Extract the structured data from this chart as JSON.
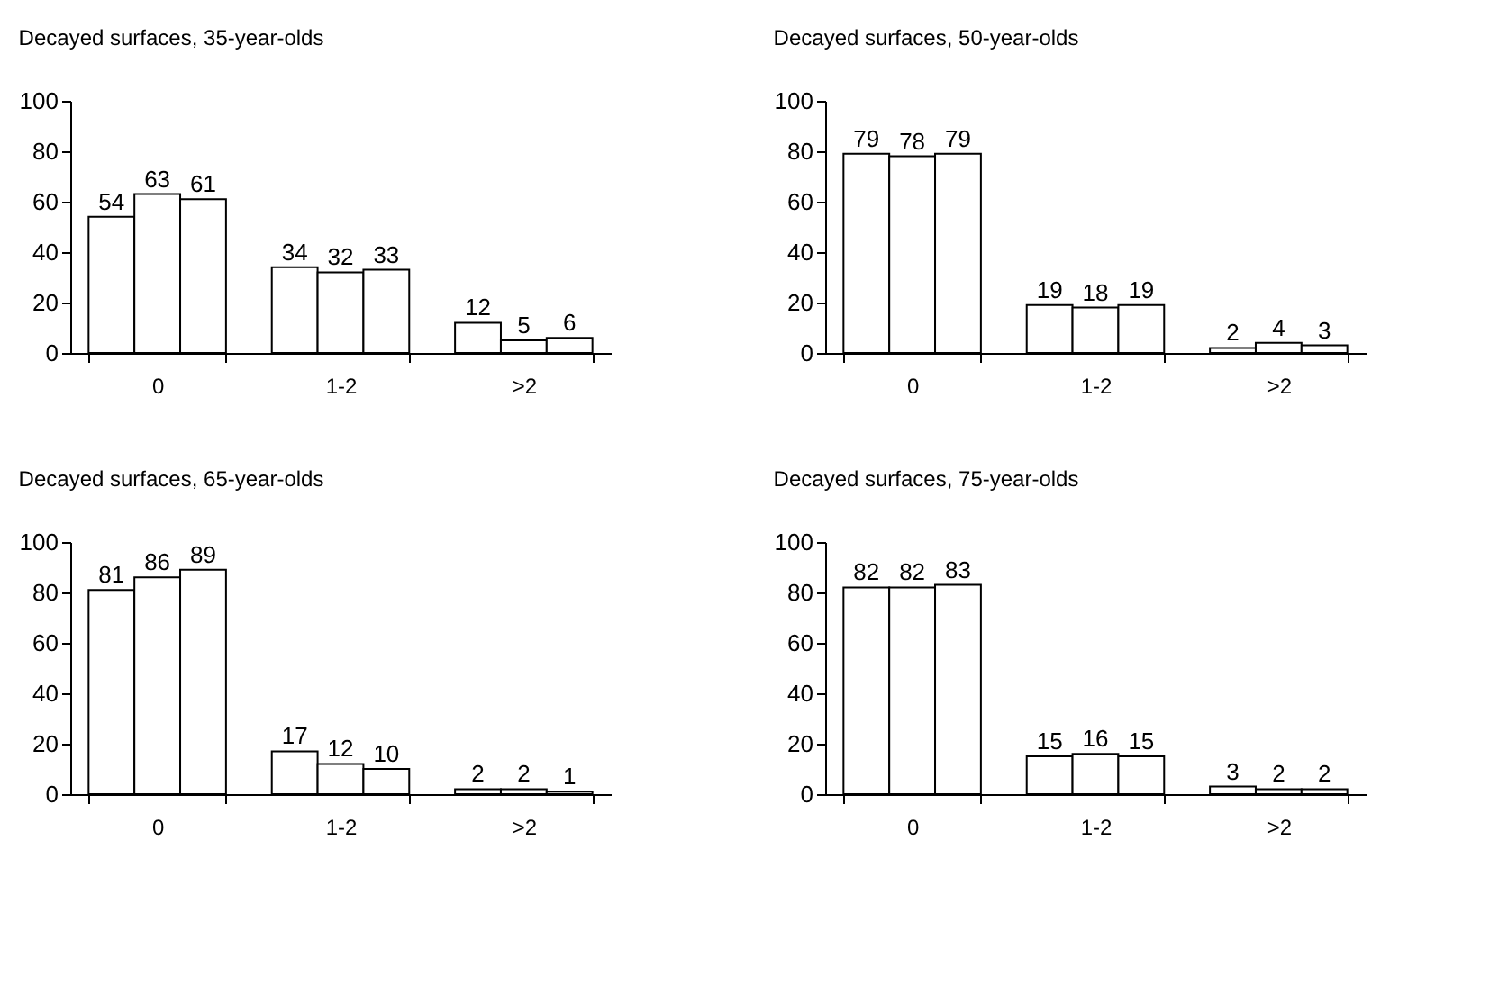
{
  "chart_data": [
    {
      "type": "bar",
      "title": "Decayed surfaces, 35-year-olds",
      "categories": [
        "0",
        "1-2",
        ">2"
      ],
      "series": [
        {
          "color": "#ffffff",
          "values": [
            54,
            34,
            12
          ]
        },
        {
          "color": "#ffffff",
          "values": [
            63,
            32,
            5
          ]
        },
        {
          "color": "#ffffff",
          "values": [
            61,
            33,
            6
          ]
        }
      ],
      "ylim": [
        0,
        100
      ],
      "yticks": [
        0,
        20,
        40,
        60,
        80,
        100
      ],
      "data_labels": true,
      "grid": false,
      "legend": false
    },
    {
      "type": "bar",
      "title": "Decayed surfaces, 50-year-olds",
      "categories": [
        "0",
        "1-2",
        ">2"
      ],
      "series": [
        {
          "color": "#ffffff",
          "values": [
            79,
            19,
            2
          ]
        },
        {
          "color": "#ffffff",
          "values": [
            78,
            18,
            4
          ]
        },
        {
          "color": "#ffffff",
          "values": [
            79,
            19,
            3
          ]
        }
      ],
      "ylim": [
        0,
        100
      ],
      "yticks": [
        0,
        20,
        40,
        60,
        80,
        100
      ],
      "data_labels": true,
      "grid": false,
      "legend": false
    },
    {
      "type": "bar",
      "title": "Decayed surfaces, 65-year-olds",
      "categories": [
        "0",
        "1-2",
        ">2"
      ],
      "series": [
        {
          "color": "#ffffff",
          "values": [
            81,
            17,
            2
          ]
        },
        {
          "color": "#ffffff",
          "values": [
            86,
            12,
            2
          ]
        },
        {
          "color": "#ffffff",
          "values": [
            89,
            10,
            1
          ]
        }
      ],
      "ylim": [
        0,
        100
      ],
      "yticks": [
        0,
        20,
        40,
        60,
        80,
        100
      ],
      "data_labels": true,
      "grid": false,
      "legend": false
    },
    {
      "type": "bar",
      "title": "Decayed surfaces, 75-year-olds",
      "categories": [
        "0",
        "1-2",
        ">2"
      ],
      "series": [
        {
          "color": "#ffffff",
          "values": [
            82,
            15,
            3
          ]
        },
        {
          "color": "#ffffff",
          "values": [
            82,
            16,
            2
          ]
        },
        {
          "color": "#ffffff",
          "values": [
            83,
            15,
            2
          ]
        }
      ],
      "ylim": [
        0,
        100
      ],
      "yticks": [
        0,
        20,
        40,
        60,
        80,
        100
      ],
      "data_labels": true,
      "grid": false,
      "legend": false
    }
  ]
}
